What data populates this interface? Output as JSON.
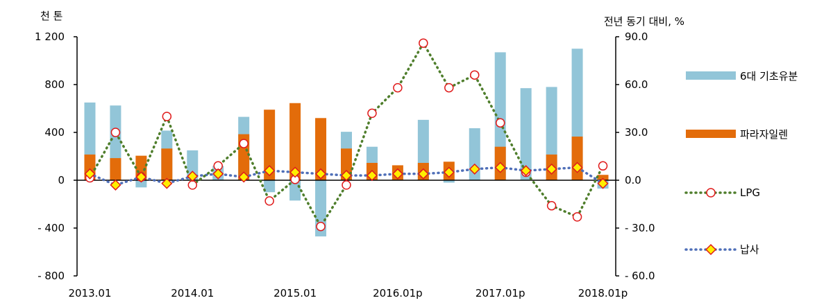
{
  "chart_data": {
    "type": "bar",
    "left_unit": "천 톤",
    "right_unit": "전년 동기 대비, %",
    "x_tick_labels": [
      "2013.01",
      "2014.01",
      "2015.01",
      "2016.01p",
      "2017.01p",
      "2018.01p"
    ],
    "x_tick_indices": [
      0,
      4,
      8,
      12,
      16,
      20
    ],
    "left_axis": {
      "min": -800,
      "max": 1200,
      "step": 400,
      "tick_labels": [
        "- 800",
        "- 400",
        "0",
        "400",
        "800",
        "1 200"
      ]
    },
    "right_axis": {
      "min": -60,
      "max": 90,
      "step": 30,
      "tick_labels": [
        "- 60.0",
        "- 30.0",
        "0.0",
        "30.0",
        "60.0",
        "90.0"
      ]
    },
    "colors": {
      "base_oil": "#92c5d8",
      "paraxylene": "#e36c0a",
      "lpg": "#4f7e2c",
      "naphtha": "#4f6fb8",
      "marker_red": "#e01b1b",
      "marker_yellow": "#ffee00"
    },
    "series": [
      {
        "name": "6대 기초유분",
        "kind": "bar",
        "axis": "left",
        "values": [
          650,
          625,
          -60,
          415,
          250,
          120,
          530,
          -100,
          -170,
          -470,
          405,
          280,
          75,
          505,
          -20,
          435,
          1070,
          770,
          780,
          1100,
          -70
        ]
      },
      {
        "name": "파라자일렌",
        "kind": "bar",
        "axis": "left",
        "values": [
          215,
          185,
          205,
          265,
          0,
          0,
          385,
          590,
          645,
          520,
          265,
          145,
          125,
          145,
          155,
          0,
          280,
          0,
          215,
          365,
          45
        ]
      },
      {
        "name": "LPG",
        "kind": "line",
        "axis": "right",
        "values": [
          1.5,
          30,
          2,
          40,
          -3,
          9,
          23,
          -13,
          0.5,
          -29,
          -3,
          42,
          58,
          86,
          58,
          66,
          36,
          5,
          -16,
          -23,
          9
        ]
      },
      {
        "name": "납사",
        "kind": "line",
        "axis": "right",
        "values": [
          4,
          -3,
          2,
          -2,
          2.5,
          4,
          2,
          6,
          5,
          4,
          3,
          3,
          4,
          4,
          5,
          7,
          8,
          6,
          7,
          8,
          -2
        ]
      }
    ]
  }
}
